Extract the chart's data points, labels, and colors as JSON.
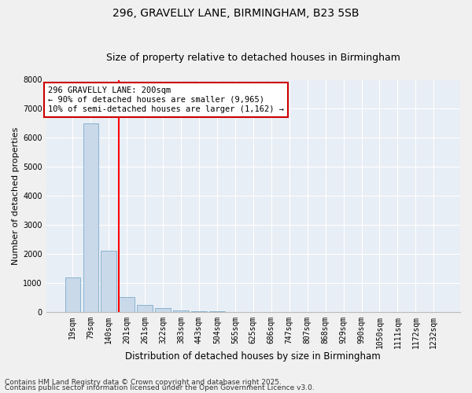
{
  "title1": "296, GRAVELLY LANE, BIRMINGHAM, B23 5SB",
  "title2": "Size of property relative to detached houses in Birmingham",
  "xlabel": "Distribution of detached houses by size in Birmingham",
  "ylabel": "Number of detached properties",
  "categories": [
    "19sqm",
    "79sqm",
    "140sqm",
    "201sqm",
    "261sqm",
    "322sqm",
    "383sqm",
    "443sqm",
    "504sqm",
    "565sqm",
    "625sqm",
    "686sqm",
    "747sqm",
    "807sqm",
    "868sqm",
    "929sqm",
    "990sqm",
    "1050sqm",
    "1111sqm",
    "1172sqm",
    "1232sqm"
  ],
  "values": [
    1200,
    6500,
    2100,
    500,
    250,
    130,
    60,
    25,
    10,
    5,
    0,
    0,
    0,
    0,
    0,
    0,
    0,
    0,
    0,
    0,
    0
  ],
  "bar_color": "#c9d9ea",
  "bar_edge_color": "#7aaac8",
  "annotation_text": "296 GRAVELLY LANE: 200sqm\n← 90% of detached houses are smaller (9,965)\n10% of semi-detached houses are larger (1,162) →",
  "annotation_box_color": "#ffffff",
  "annotation_box_edge_color": "#cc0000",
  "red_line_index": 3,
  "ylim": [
    0,
    8000
  ],
  "yticks": [
    0,
    1000,
    2000,
    3000,
    4000,
    5000,
    6000,
    7000,
    8000
  ],
  "fig_bg": "#f0f0f0",
  "plot_bg": "#e8eef5",
  "grid_color": "#ffffff",
  "footer1": "Contains HM Land Registry data © Crown copyright and database right 2025.",
  "footer2": "Contains public sector information licensed under the Open Government Licence v3.0.",
  "title1_fontsize": 10,
  "title2_fontsize": 9,
  "xlabel_fontsize": 8.5,
  "ylabel_fontsize": 8,
  "tick_fontsize": 7,
  "annotation_fontsize": 7.5,
  "footer_fontsize": 6.5
}
